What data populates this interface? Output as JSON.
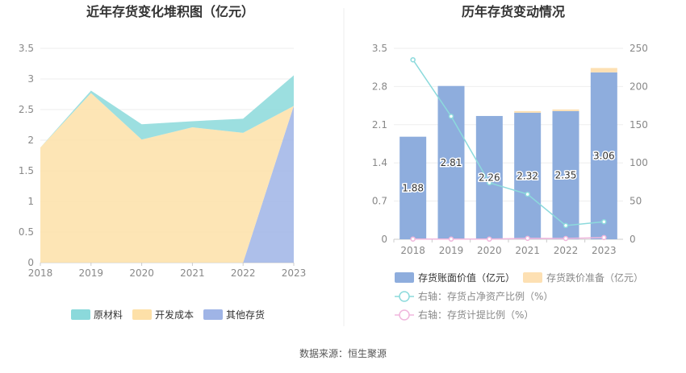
{
  "source": "数据来源：恒生聚源",
  "colors": {
    "raw": "#8bd9db",
    "dev": "#fde0a8",
    "other": "#9fb4e6",
    "bar_value": "#8eaddd",
    "bar_impair": "#fde0b3",
    "line_ratio": "#8cdadc",
    "line_provision": "#f0b7dd"
  },
  "chart_data": [
    {
      "type": "area",
      "title": "近年存货变化堆积图（亿元）",
      "categories": [
        "2018",
        "2019",
        "2020",
        "2021",
        "2022",
        "2023"
      ],
      "ylim": [
        0,
        3.5
      ],
      "yticks": [
        "0",
        "0.5",
        "1",
        "1.5",
        "2",
        "2.5",
        "3",
        "3.5"
      ],
      "grid": true,
      "legend_position": "bottom",
      "stacked": true,
      "series": [
        {
          "name": "原材料",
          "values": [
            0.0,
            0.04,
            0.25,
            0.1,
            0.23,
            0.5
          ]
        },
        {
          "name": "开发成本",
          "values": [
            1.88,
            2.77,
            2.01,
            2.21,
            2.12,
            0.0
          ]
        },
        {
          "name": "其他存货",
          "values": [
            0.0,
            0.0,
            0.0,
            0.0,
            0.0,
            2.56
          ]
        }
      ]
    },
    {
      "type": "bar",
      "title": "历年存货变动情况",
      "categories": [
        "2018",
        "2019",
        "2020",
        "2021",
        "2022",
        "2023"
      ],
      "ylim": [
        0,
        3.5
      ],
      "yticks": [
        "0",
        "0.7",
        "1.4",
        "2.1",
        "2.8",
        "3.5"
      ],
      "y2lim": [
        0,
        250
      ],
      "y2ticks": [
        "0",
        "50",
        "100",
        "150",
        "200",
        "250"
      ],
      "grid": true,
      "legend_position": "bottom",
      "series": [
        {
          "name": "存货账面价值（亿元）",
          "values": [
            1.88,
            2.81,
            2.26,
            2.32,
            2.35,
            3.06
          ],
          "labels": [
            "1.88",
            "2.81",
            "2.26",
            "2.32",
            "2.35",
            "3.06"
          ]
        },
        {
          "name": "存货跌价准备（亿元）",
          "values": [
            0.0,
            0.0,
            0.0,
            0.03,
            0.03,
            0.08
          ]
        }
      ],
      "lines": [
        {
          "name": "右轴：存货占净资产比例（%）",
          "axis": "right",
          "values": [
            235,
            161,
            74,
            59,
            18,
            23
          ]
        },
        {
          "name": "右轴：存货计提比例（%）",
          "axis": "right",
          "values": [
            0.3,
            0.2,
            0.2,
            1.2,
            1.0,
            2.3
          ]
        }
      ]
    }
  ]
}
